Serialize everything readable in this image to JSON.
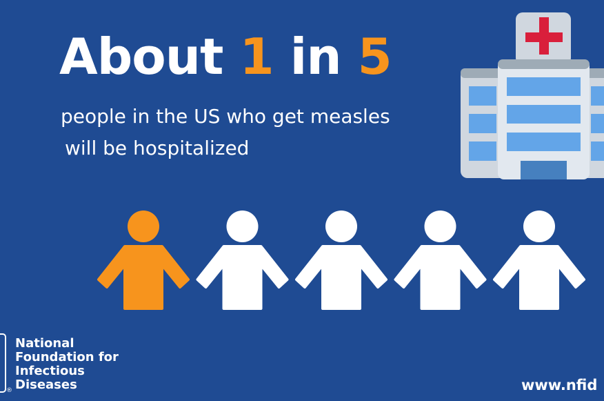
{
  "headline": {
    "prefix": "About ",
    "num1": "1",
    "middle": " in ",
    "num2": "5"
  },
  "subtitle": {
    "line1": "people in the US who get measles",
    "line2": "will be hospitalized"
  },
  "people": [
    {
      "color": "#f7941d",
      "highlighted": true
    },
    {
      "color": "#ffffff",
      "highlighted": false
    },
    {
      "color": "#ffffff",
      "highlighted": false
    },
    {
      "color": "#ffffff",
      "highlighted": false
    },
    {
      "color": "#ffffff",
      "highlighted": false
    }
  ],
  "icons": {
    "hospital": "hospital-icon",
    "person": "person-icon"
  },
  "logo": {
    "lines": [
      "National",
      "Foundation for",
      "Infectious",
      "Diseases"
    ]
  },
  "url": "www.nfid",
  "colors": {
    "background": "#1f4b93",
    "accent": "#f7941d",
    "cross": "#d91f3b"
  }
}
